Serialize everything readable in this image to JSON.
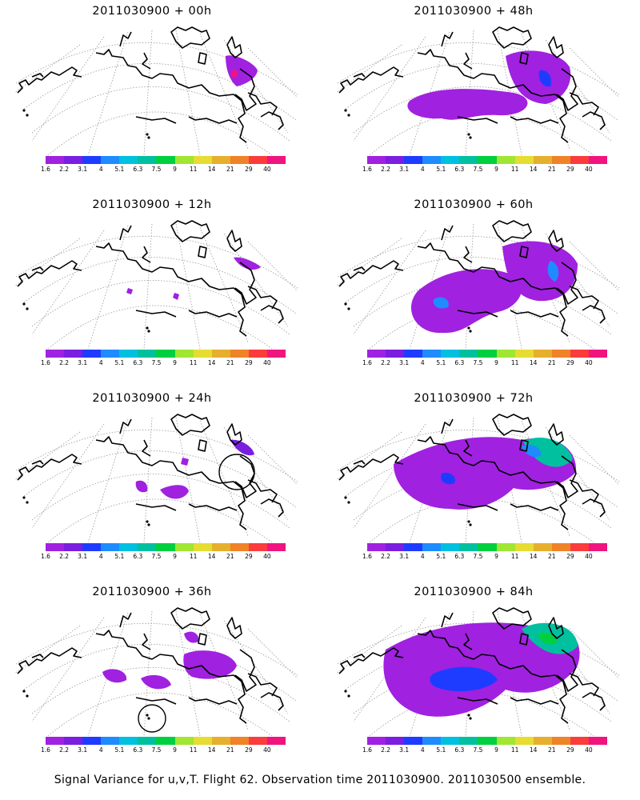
{
  "panels": [
    {
      "title": "2011030900 + 00h"
    },
    {
      "title": "2011030900 + 48h"
    },
    {
      "title": "2011030900 + 12h"
    },
    {
      "title": "2011030900 + 60h"
    },
    {
      "title": "2011030900 + 24h"
    },
    {
      "title": "2011030900 + 72h"
    },
    {
      "title": "2011030900 + 36h"
    },
    {
      "title": "2011030900 + 84h"
    }
  ],
  "colorbar": {
    "labels": [
      "1.6",
      "2.2",
      "3.1",
      "4",
      "5.1",
      "6.3",
      "7.5",
      "9",
      "11",
      "14",
      "21",
      "29",
      "40"
    ],
    "colors": [
      "#a021e0",
      "#7a1ee0",
      "#1e3cff",
      "#1e8cff",
      "#00c0e0",
      "#00c0a0",
      "#00d040",
      "#a0e632",
      "#e6dc32",
      "#e6af2d",
      "#f08228",
      "#fa3c3c",
      "#f0147f"
    ]
  },
  "caption": "Signal Variance for u,v,T. Flight 62. Observation time 2011030900. 2011030500 ensemble."
}
